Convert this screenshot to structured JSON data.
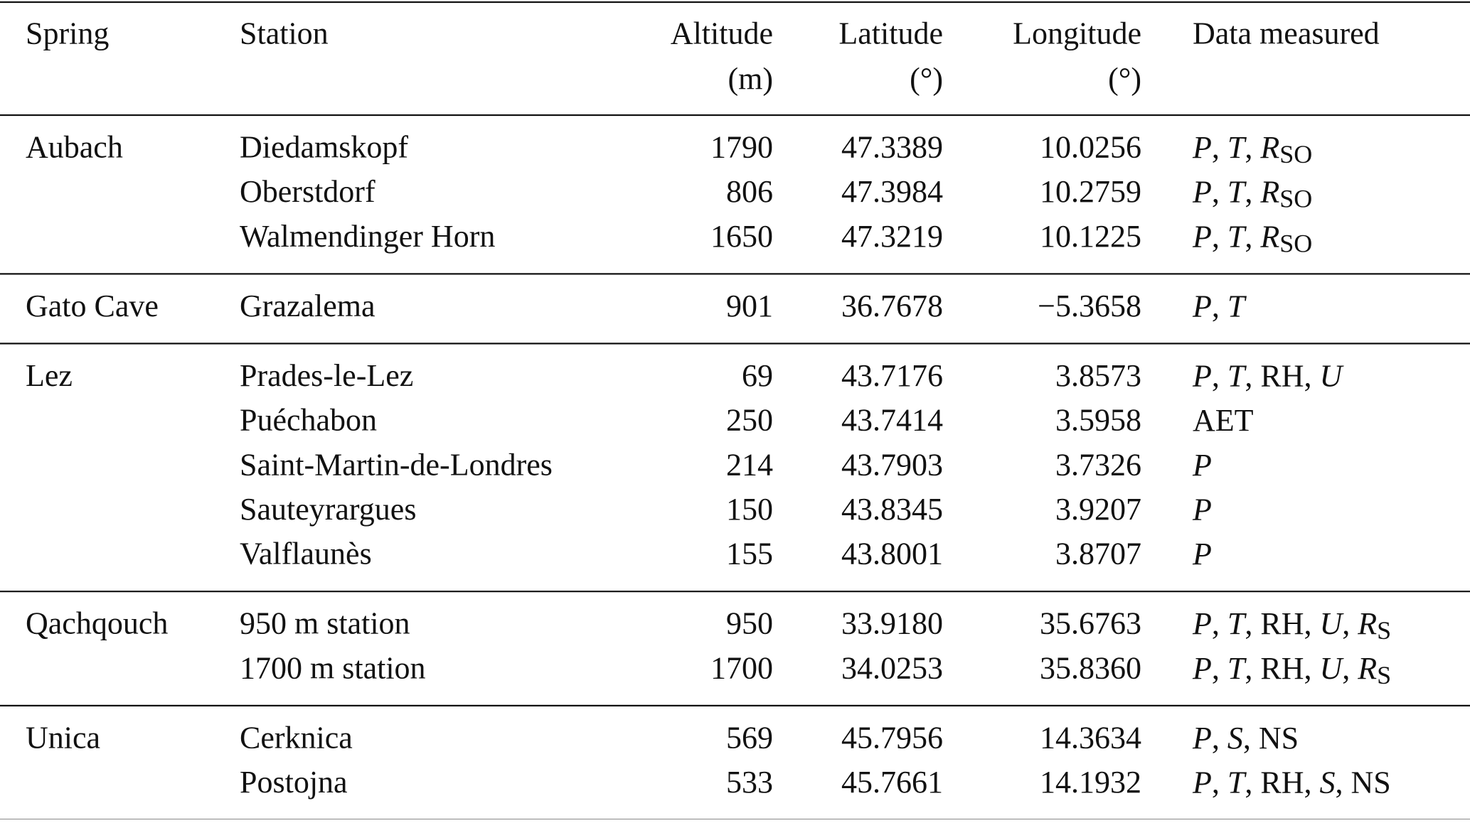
{
  "table": {
    "columns": [
      {
        "lines": [
          "Spring"
        ]
      },
      {
        "lines": [
          "Station"
        ]
      },
      {
        "lines": [
          "Altitude",
          "(m)"
        ]
      },
      {
        "lines": [
          "Latitude",
          "(°)"
        ]
      },
      {
        "lines": [
          "Longitude",
          "(°)"
        ]
      },
      {
        "lines": [
          "Data measured"
        ]
      }
    ],
    "groups": [
      {
        "spring": "Aubach",
        "rows": [
          {
            "station": "Diedamskopf",
            "altitude": "1790",
            "latitude": "47.3389",
            "longitude": "10.0256",
            "data": [
              {
                "text": "P",
                "italic": true
              },
              {
                "text": ", "
              },
              {
                "text": "T",
                "italic": true
              },
              {
                "text": ", "
              },
              {
                "text": "R",
                "italic": true
              },
              {
                "text": "SO",
                "sub": true
              }
            ]
          },
          {
            "station": "Oberstdorf",
            "altitude": "806",
            "latitude": "47.3984",
            "longitude": "10.2759",
            "data": [
              {
                "text": "P",
                "italic": true
              },
              {
                "text": ", "
              },
              {
                "text": "T",
                "italic": true
              },
              {
                "text": ", "
              },
              {
                "text": "R",
                "italic": true
              },
              {
                "text": "SO",
                "sub": true
              }
            ]
          },
          {
            "station": "Walmendinger Horn",
            "altitude": "1650",
            "latitude": "47.3219",
            "longitude": "10.1225",
            "data": [
              {
                "text": "P",
                "italic": true
              },
              {
                "text": ", "
              },
              {
                "text": "T",
                "italic": true
              },
              {
                "text": ", "
              },
              {
                "text": "R",
                "italic": true
              },
              {
                "text": "SO",
                "sub": true
              }
            ]
          }
        ]
      },
      {
        "spring": "Gato Cave",
        "rows": [
          {
            "station": "Grazalema",
            "altitude": "901",
            "latitude": "36.7678",
            "longitude": "−5.3658",
            "data": [
              {
                "text": "P",
                "italic": true
              },
              {
                "text": ", "
              },
              {
                "text": "T",
                "italic": true
              }
            ]
          }
        ]
      },
      {
        "spring": "Lez",
        "rows": [
          {
            "station": "Prades-le-Lez",
            "altitude": "69",
            "latitude": "43.7176",
            "longitude": "3.8573",
            "data": [
              {
                "text": "P",
                "italic": true
              },
              {
                "text": ", "
              },
              {
                "text": "T",
                "italic": true
              },
              {
                "text": ", RH, "
              },
              {
                "text": "U",
                "italic": true
              }
            ]
          },
          {
            "station": "Puéchabon",
            "altitude": "250",
            "latitude": "43.7414",
            "longitude": "3.5958",
            "data": [
              {
                "text": "AET"
              }
            ]
          },
          {
            "station": "Saint-Martin-de-Londres",
            "altitude": "214",
            "latitude": "43.7903",
            "longitude": "3.7326",
            "data": [
              {
                "text": "P",
                "italic": true
              }
            ]
          },
          {
            "station": "Sauteyrargues",
            "altitude": "150",
            "latitude": "43.8345",
            "longitude": "3.9207",
            "data": [
              {
                "text": "P",
                "italic": true
              }
            ]
          },
          {
            "station": "Valflaunès",
            "altitude": "155",
            "latitude": "43.8001",
            "longitude": "3.8707",
            "data": [
              {
                "text": "P",
                "italic": true
              }
            ]
          }
        ]
      },
      {
        "spring": "Qachqouch",
        "rows": [
          {
            "station": "950 m station",
            "altitude": "950",
            "latitude": "33.9180",
            "longitude": "35.6763",
            "data": [
              {
                "text": "P",
                "italic": true
              },
              {
                "text": ", "
              },
              {
                "text": "T",
                "italic": true
              },
              {
                "text": ", RH, "
              },
              {
                "text": "U",
                "italic": true
              },
              {
                "text": ", "
              },
              {
                "text": "R",
                "italic": true
              },
              {
                "text": "S",
                "sub": true
              }
            ]
          },
          {
            "station": "1700 m station",
            "altitude": "1700",
            "latitude": "34.0253",
            "longitude": "35.8360",
            "data": [
              {
                "text": "P",
                "italic": true
              },
              {
                "text": ", "
              },
              {
                "text": "T",
                "italic": true
              },
              {
                "text": ", RH, "
              },
              {
                "text": "U",
                "italic": true
              },
              {
                "text": ", "
              },
              {
                "text": "R",
                "italic": true
              },
              {
                "text": "S",
                "sub": true
              }
            ]
          }
        ]
      },
      {
        "spring": "Unica",
        "rows": [
          {
            "station": "Cerknica",
            "altitude": "569",
            "latitude": "45.7956",
            "longitude": "14.3634",
            "data": [
              {
                "text": "P",
                "italic": true
              },
              {
                "text": ", "
              },
              {
                "text": "S",
                "italic": true
              },
              {
                "text": ", NS"
              }
            ]
          },
          {
            "station": "Postojna",
            "altitude": "533",
            "latitude": "45.7661",
            "longitude": "14.1932",
            "data": [
              {
                "text": "P",
                "italic": true
              },
              {
                "text": ", "
              },
              {
                "text": "T",
                "italic": true
              },
              {
                "text": ", RH, "
              },
              {
                "text": "S",
                "italic": true
              },
              {
                "text": ", NS"
              }
            ]
          }
        ]
      }
    ]
  }
}
